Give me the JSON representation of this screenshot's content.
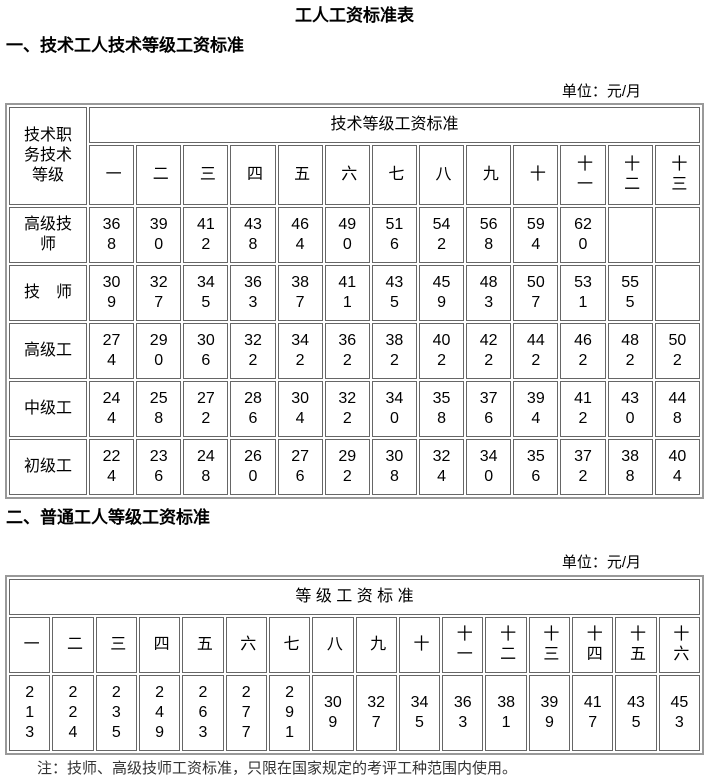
{
  "title": "工人工资标准表",
  "section1": {
    "heading": "一、技术工人技术等级工资标准",
    "unit": "单位：元/月",
    "corner_label": "技术职务技术等级",
    "group_header": "技术等级工资标准",
    "grades": [
      "一",
      "二",
      "三",
      "四",
      "五",
      "六",
      "七",
      "八",
      "九",
      "十",
      "十一",
      "十二",
      "十三"
    ],
    "rows": [
      {
        "label": "高级技师",
        "values": [
          "368",
          "390",
          "412",
          "438",
          "464",
          "490",
          "516",
          "542",
          "568",
          "594",
          "620",
          "",
          ""
        ]
      },
      {
        "label": "技　师",
        "values": [
          "309",
          "327",
          "345",
          "363",
          "387",
          "411",
          "435",
          "459",
          "483",
          "507",
          "531",
          "555",
          ""
        ]
      },
      {
        "label": "高级工",
        "values": [
          "274",
          "290",
          "306",
          "322",
          "342",
          "362",
          "382",
          "402",
          "422",
          "442",
          "462",
          "482",
          "502"
        ]
      },
      {
        "label": "中级工",
        "values": [
          "244",
          "258",
          "272",
          "286",
          "304",
          "322",
          "340",
          "358",
          "376",
          "394",
          "412",
          "430",
          "448"
        ]
      },
      {
        "label": "初级工",
        "values": [
          "224",
          "236",
          "248",
          "260",
          "276",
          "292",
          "308",
          "324",
          "340",
          "356",
          "372",
          "388",
          "404"
        ]
      }
    ]
  },
  "section2": {
    "heading": "二、普通工人等级工资标准",
    "unit": "单位：元/月",
    "group_header": "等 级 工 资 标 准",
    "grades": [
      "一",
      "二",
      "三",
      "四",
      "五",
      "六",
      "七",
      "八",
      "九",
      "十",
      "十一",
      "十二",
      "十三",
      "十四",
      "十五",
      "十六"
    ],
    "values": [
      "213",
      "224",
      "235",
      "249",
      "263",
      "277",
      "291",
      "309",
      "327",
      "345",
      "363",
      "381",
      "399",
      "417",
      "435",
      "453"
    ]
  },
  "note": "注：技师、高级技师工资标准，只限在国家规定的考评工种范围内使用。"
}
